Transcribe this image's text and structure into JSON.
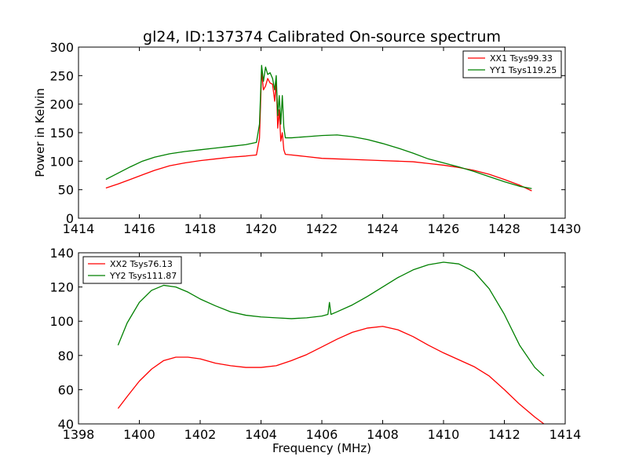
{
  "chart_data": [
    {
      "type": "line",
      "title": "gl24, ID:137374 Calibrated On-source spectrum",
      "xlabel": "",
      "ylabel": "Power in Kelvin",
      "xlim": [
        1414,
        1430
      ],
      "ylim": [
        0,
        300
      ],
      "xticks": [
        1414,
        1416,
        1418,
        1420,
        1422,
        1424,
        1426,
        1428,
        1430
      ],
      "yticks": [
        0,
        50,
        100,
        150,
        200,
        250,
        300
      ],
      "legend_position": "top-right",
      "grid": false,
      "series": [
        {
          "name": "XX1 Tsys99.33",
          "color": "#ff0000",
          "x": [
            1414.9,
            1415.3,
            1415.7,
            1416.1,
            1416.5,
            1417.0,
            1417.5,
            1418.0,
            1418.5,
            1419.0,
            1419.5,
            1419.85,
            1419.95,
            1420.02,
            1420.08,
            1420.15,
            1420.22,
            1420.3,
            1420.38,
            1420.45,
            1420.5,
            1420.55,
            1420.6,
            1420.65,
            1420.7,
            1420.75,
            1420.8,
            1421.0,
            1421.5,
            1422.0,
            1422.5,
            1423.0,
            1423.5,
            1424.0,
            1424.5,
            1425.0,
            1425.5,
            1426.0,
            1426.5,
            1427.0,
            1427.5,
            1428.0,
            1428.5,
            1428.9
          ],
          "y": [
            53,
            60,
            68,
            76,
            84,
            92,
            97,
            101,
            104,
            107,
            109,
            111,
            140,
            258,
            225,
            232,
            245,
            237,
            235,
            205,
            240,
            158,
            190,
            135,
            150,
            120,
            112,
            111,
            108,
            105,
            104,
            103,
            102,
            101,
            100,
            99,
            96,
            93,
            89,
            84,
            77,
            68,
            58,
            48
          ]
        },
        {
          "name": "YY1 Tsys119.25",
          "color": "#008000",
          "x": [
            1414.9,
            1415.3,
            1415.7,
            1416.1,
            1416.5,
            1417.0,
            1417.5,
            1418.0,
            1418.5,
            1419.0,
            1419.5,
            1419.85,
            1419.95,
            1420.02,
            1420.08,
            1420.15,
            1420.22,
            1420.3,
            1420.38,
            1420.45,
            1420.5,
            1420.55,
            1420.6,
            1420.65,
            1420.7,
            1420.75,
            1420.8,
            1421.0,
            1421.5,
            1422.0,
            1422.5,
            1423.0,
            1423.5,
            1424.0,
            1424.5,
            1425.0,
            1425.5,
            1426.0,
            1426.5,
            1427.0,
            1427.5,
            1428.0,
            1428.5,
            1428.9
          ],
          "y": [
            68,
            79,
            90,
            100,
            107,
            113,
            117,
            120,
            123,
            126,
            129,
            133,
            165,
            268,
            240,
            265,
            252,
            255,
            245,
            225,
            250,
            180,
            215,
            165,
            215,
            160,
            141,
            141,
            143,
            145,
            146,
            143,
            138,
            131,
            123,
            114,
            104,
            97,
            90,
            82,
            73,
            64,
            56,
            52
          ]
        }
      ]
    },
    {
      "type": "line",
      "title": "",
      "xlabel": "Frequency (MHz)",
      "ylabel": "",
      "xlim": [
        1398,
        1414
      ],
      "ylim": [
        40,
        140
      ],
      "xticks": [
        1398,
        1400,
        1402,
        1404,
        1406,
        1408,
        1410,
        1412,
        1414
      ],
      "yticks": [
        40,
        60,
        80,
        100,
        120,
        140
      ],
      "legend_position": "top-left",
      "grid": false,
      "series": [
        {
          "name": "XX2 Tsys76.13",
          "color": "#ff0000",
          "x": [
            1399.3,
            1399.6,
            1400.0,
            1400.4,
            1400.8,
            1401.2,
            1401.6,
            1402.0,
            1402.5,
            1403.0,
            1403.5,
            1404.0,
            1404.5,
            1405.0,
            1405.5,
            1406.0,
            1406.5,
            1407.0,
            1407.5,
            1408.0,
            1408.5,
            1409.0,
            1409.5,
            1410.0,
            1410.5,
            1411.0,
            1411.5,
            1412.0,
            1412.5,
            1413.0,
            1413.3
          ],
          "y": [
            49,
            56,
            65,
            72,
            77,
            79,
            79,
            78,
            75.5,
            74,
            73,
            73,
            74,
            77,
            80.5,
            85,
            89.5,
            93.5,
            96,
            97,
            95,
            91,
            86,
            81.5,
            77.5,
            73.5,
            68,
            60,
            51.5,
            44,
            40
          ]
        },
        {
          "name": "YY2 Tsys111.87",
          "color": "#008000",
          "x": [
            1399.3,
            1399.6,
            1400.0,
            1400.4,
            1400.8,
            1401.2,
            1401.6,
            1402.0,
            1402.5,
            1403.0,
            1403.5,
            1404.0,
            1404.5,
            1405.0,
            1405.5,
            1406.0,
            1406.2,
            1406.25,
            1406.3,
            1406.5,
            1407.0,
            1407.5,
            1408.0,
            1408.5,
            1409.0,
            1409.5,
            1410.0,
            1410.5,
            1411.0,
            1411.5,
            1412.0,
            1412.5,
            1413.0,
            1413.3
          ],
          "y": [
            86,
            99,
            111,
            118,
            121,
            120,
            117,
            113,
            109,
            105.5,
            103.5,
            102.5,
            102,
            101.5,
            102,
            103,
            104,
            111,
            104,
            105.5,
            109.5,
            114.5,
            120,
            125.5,
            130,
            133,
            134.5,
            133.5,
            129,
            119,
            104,
            86,
            73,
            68
          ]
        }
      ]
    }
  ]
}
